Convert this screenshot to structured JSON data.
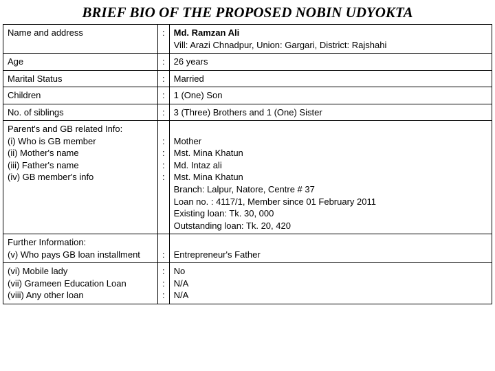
{
  "title": "BRIEF BIO OF THE PROPOSED NOBIN UDYOKTA",
  "rows": {
    "name_label": "Name and address",
    "name_bold": "Md. Ramzan Ali",
    "name_sub": "Vill: Arazi Chnadpur, Union: Gargari, District: Rajshahi",
    "age_label": "Age",
    "age_val": "26 years",
    "marital_label": "Marital Status",
    "marital_val": "Married",
    "children_label": "Children",
    "children_val": "1 (One) Son",
    "siblings_label": "No. of siblings",
    "siblings_val": "3 (Three) Brothers and 1 (One) Sister",
    "parent_header": "Parent's and GB related Info:",
    "p_i_label": "(i) Who is GB member",
    "p_i_val": "Mother",
    "p_ii_label": "(ii) Mother's name",
    "p_ii_val": "Mst. Mina Khatun",
    "p_iii_label": "(iii) Father's name",
    "p_iii_val": "Md. Intaz ali",
    "p_iv_label": "(iv) GB member's info",
    "p_iv_v1": "Mst. Mina Khatun",
    "p_iv_v2": "Branch: Lalpur, Natore, Centre # 37",
    "p_iv_v3": "Loan no. : 4117/1, Member since 01 February 2011",
    "p_iv_v4": "Existing loan: Tk. 30, 000",
    "p_iv_v5": "Outstanding loan: Tk. 20, 420",
    "further_header": "Further Information:",
    "f_v_label": "(v) Who pays GB loan installment",
    "f_v_val": "Entrepreneur's Father",
    "f_vi_label": "(vi) Mobile lady",
    "f_vi_val": "No",
    "f_vii_label": "(vii) Grameen Education Loan",
    "f_vii_val": "N/A",
    "f_viii_label": "(viii) Any other loan",
    "f_viii_val": "N/A"
  },
  "sep": ":"
}
